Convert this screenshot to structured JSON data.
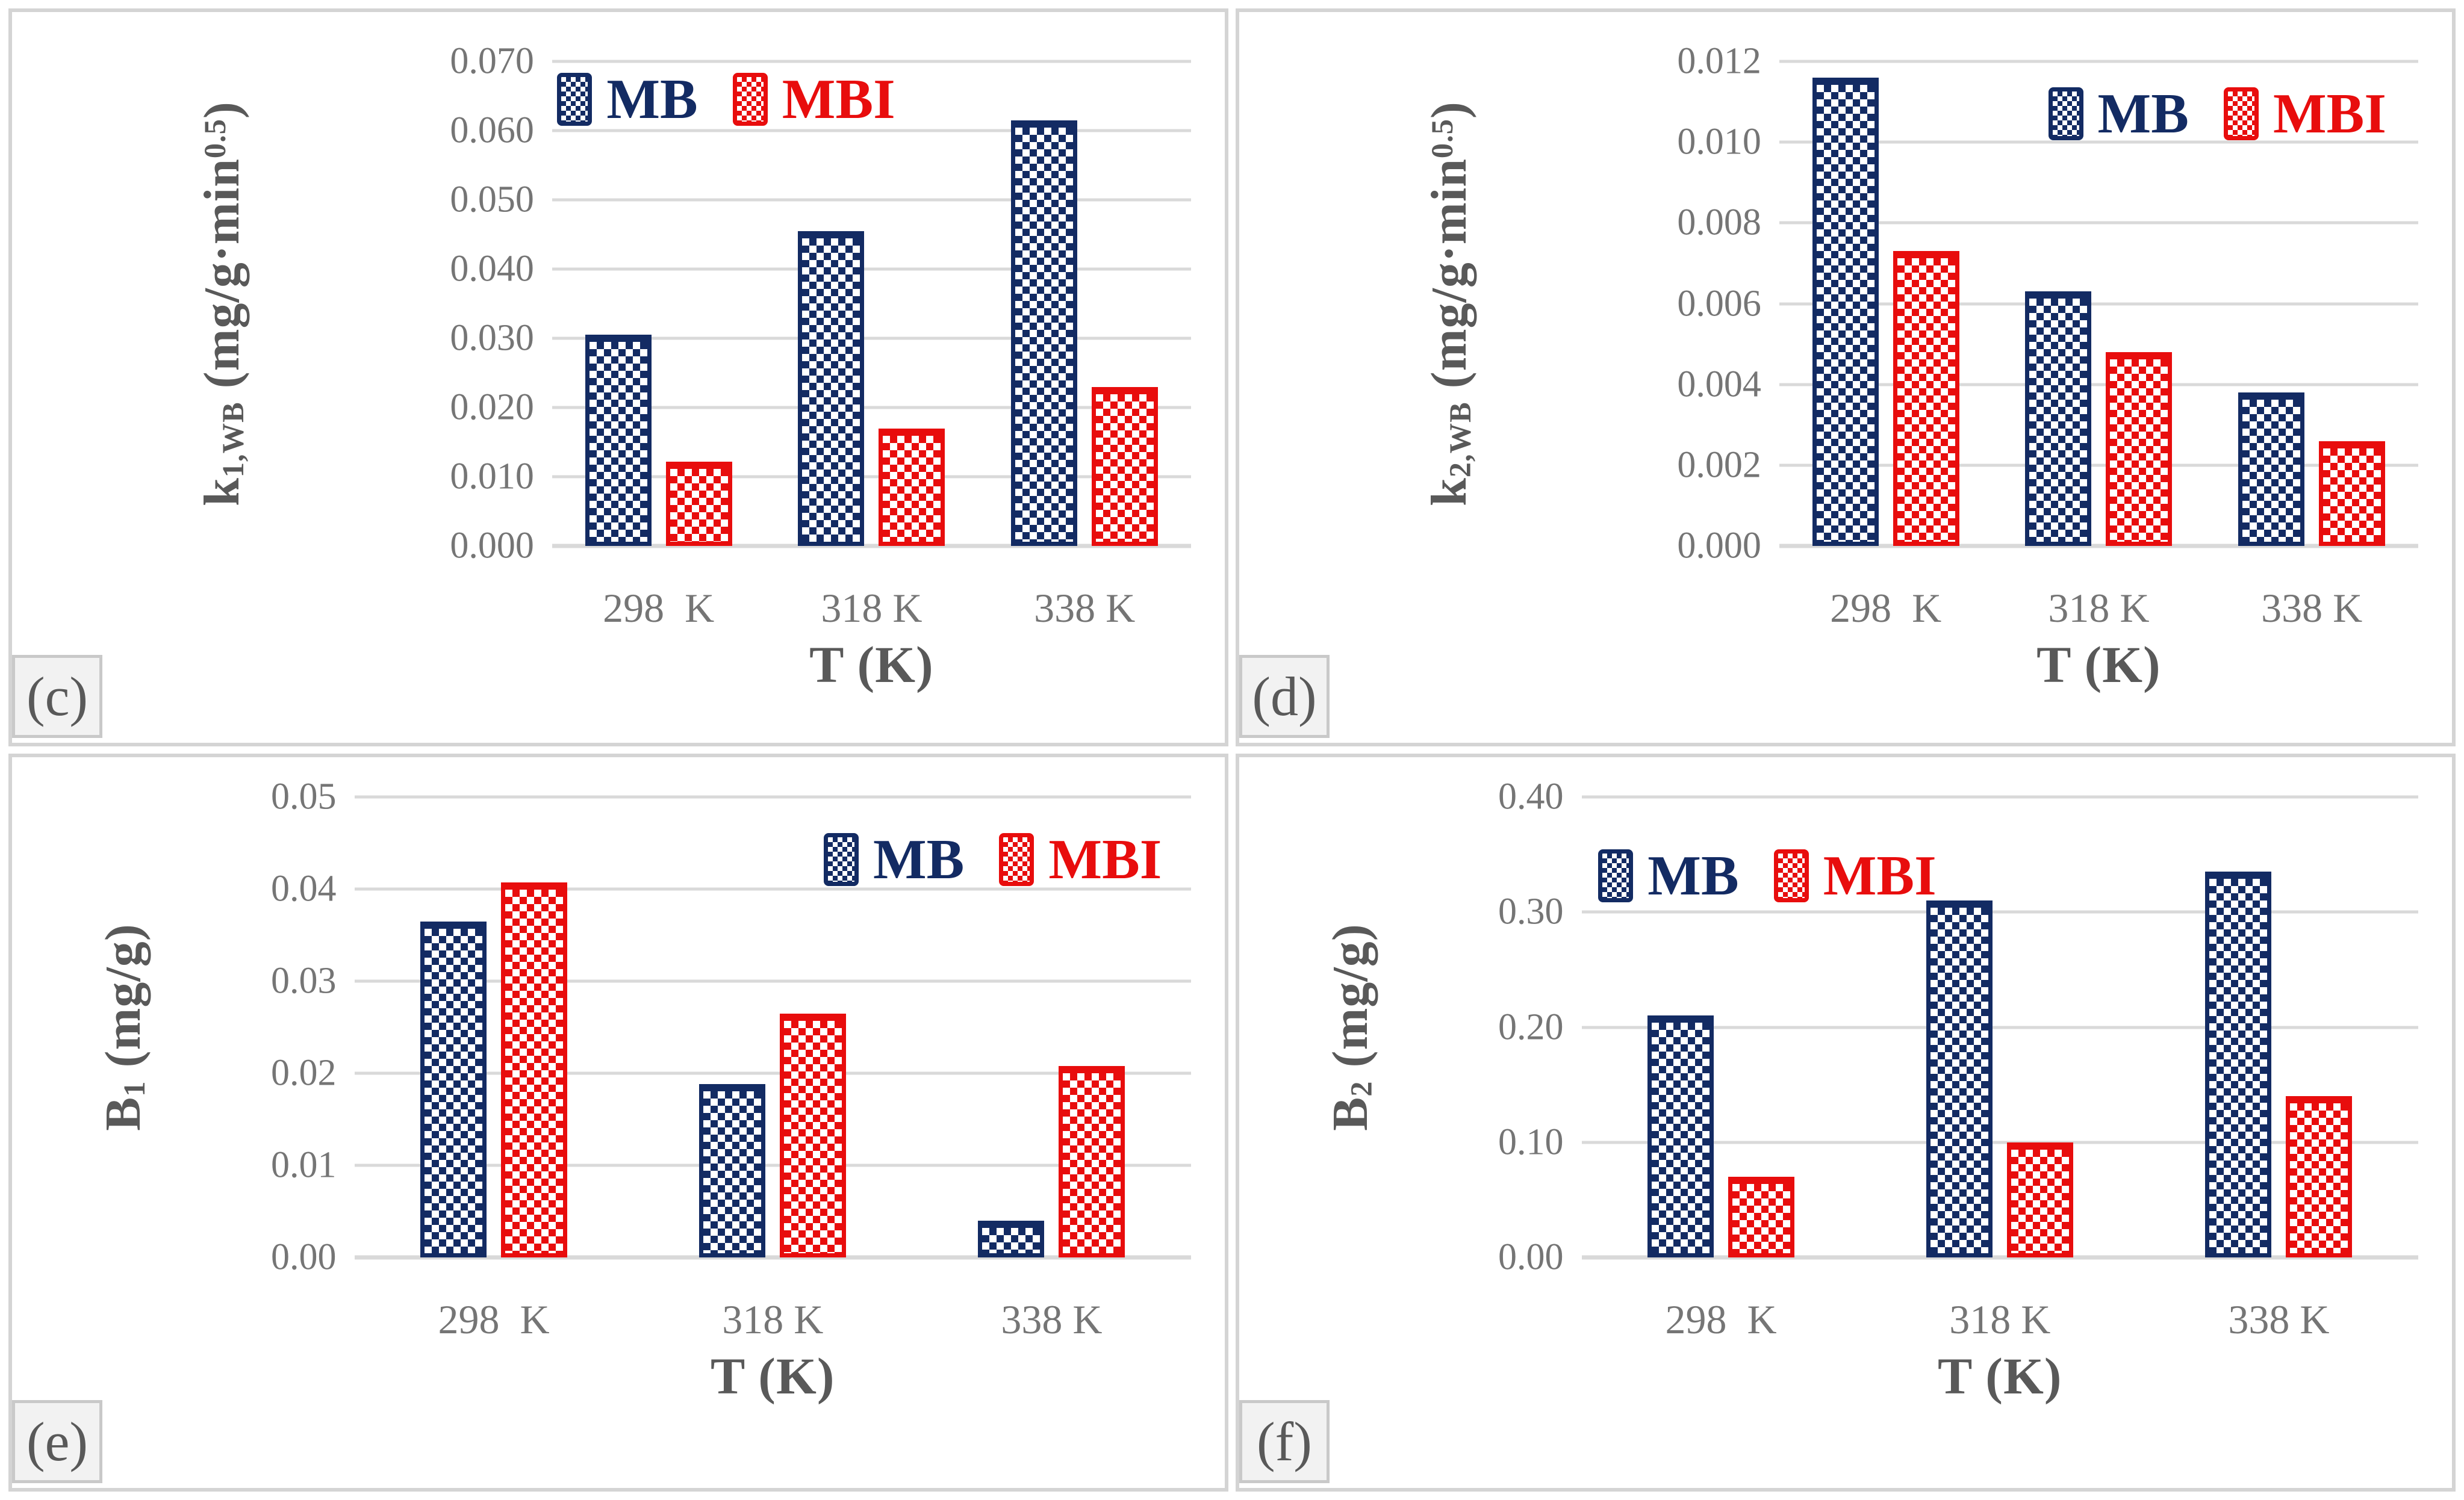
{
  "palette": {
    "grid": "#D9D9D9",
    "tick": "#757575",
    "title": "#595959",
    "panelBorder": "#D4D4D4",
    "labelBoxBg": "#F2F2F2",
    "labelBoxBorder": "#C9C9C9",
    "bg": "#FFFFFF"
  },
  "chart_data": [
    {
      "type": "bar",
      "panel_label": "(c)",
      "categories": [
        "298  K",
        "318 K",
        "338 K"
      ],
      "series": [
        {
          "name": "MB",
          "color": "#132B63",
          "values": [
            0.0305,
            0.0455,
            0.0615
          ]
        },
        {
          "name": "MBI",
          "color": "#E80D0D",
          "values": [
            0.0122,
            0.017,
            0.023
          ]
        }
      ],
      "ylabel": "k1,WB (mg/g·min^0.5)",
      "ylabel_parts": {
        "base": "k",
        "sub": "1,WB",
        "mid": " (mg/g·min",
        "sup": "0.5",
        "end": ")"
      },
      "xlabel": "T (K)",
      "ylim": [
        0,
        0.07
      ],
      "ytick_step": 0.01,
      "yticks": [
        "0.070",
        "0.060",
        "0.050",
        "0.040",
        "0.030",
        "0.020",
        "0.010",
        "0.000"
      ],
      "grid": true,
      "legend_position": "top-left"
    },
    {
      "type": "bar",
      "panel_label": "(d)",
      "categories": [
        "298  K",
        "318 K",
        "338 K"
      ],
      "series": [
        {
          "name": "MB",
          "color": "#132B63",
          "values": [
            0.0116,
            0.0063,
            0.0038
          ]
        },
        {
          "name": "MBI",
          "color": "#E80D0D",
          "values": [
            0.0073,
            0.0048,
            0.0026
          ]
        }
      ],
      "ylabel": "k2,WB (mg/g·min^0.5)",
      "ylabel_parts": {
        "base": "k",
        "sub": "2,WB",
        "mid": " (mg/g·min",
        "sup": "0.5",
        "end": ")"
      },
      "xlabel": "T (K)",
      "ylim": [
        0,
        0.012
      ],
      "ytick_step": 0.002,
      "yticks": [
        "0.012",
        "0.010",
        "0.008",
        "0.006",
        "0.004",
        "0.002",
        "0.000"
      ],
      "grid": true,
      "legend_position": "top-right"
    },
    {
      "type": "bar",
      "panel_label": "(e)",
      "categories": [
        "298  K",
        "318 K",
        "338 K"
      ],
      "series": [
        {
          "name": "MB",
          "color": "#132B63",
          "values": [
            0.0365,
            0.0188,
            0.004
          ]
        },
        {
          "name": "MBI",
          "color": "#E80D0D",
          "values": [
            0.0407,
            0.0265,
            0.0208
          ]
        }
      ],
      "ylabel": "B1 (mg/g)",
      "ylabel_parts": {
        "base": "B",
        "sub": "1",
        "mid": " (mg/g)",
        "sup": "",
        "end": ""
      },
      "xlabel": "T (K)",
      "ylim": [
        0,
        0.05
      ],
      "ytick_step": 0.01,
      "yticks": [
        "0.05",
        "0.04",
        "0.03",
        "0.02",
        "0.01",
        "0.00"
      ],
      "grid": true,
      "legend_position": "top-right"
    },
    {
      "type": "bar",
      "panel_label": "(f)",
      "categories": [
        "298  K",
        "318 K",
        "338 K"
      ],
      "series": [
        {
          "name": "MB",
          "color": "#132B63",
          "values": [
            0.21,
            0.31,
            0.335
          ]
        },
        {
          "name": "MBI",
          "color": "#E80D0D",
          "values": [
            0.07,
            0.1,
            0.14
          ]
        }
      ],
      "ylabel": "B2 (mg/g)",
      "ylabel_parts": {
        "base": "B",
        "sub": "2",
        "mid": " (mg/g)",
        "sup": "",
        "end": ""
      },
      "xlabel": "T (K)",
      "ylim": [
        0,
        0.4
      ],
      "ytick_step": 0.1,
      "yticks": [
        "0.40",
        "0.30",
        "0.20",
        "0.10",
        "0.00"
      ],
      "grid": true,
      "legend_position": "top-left"
    }
  ]
}
